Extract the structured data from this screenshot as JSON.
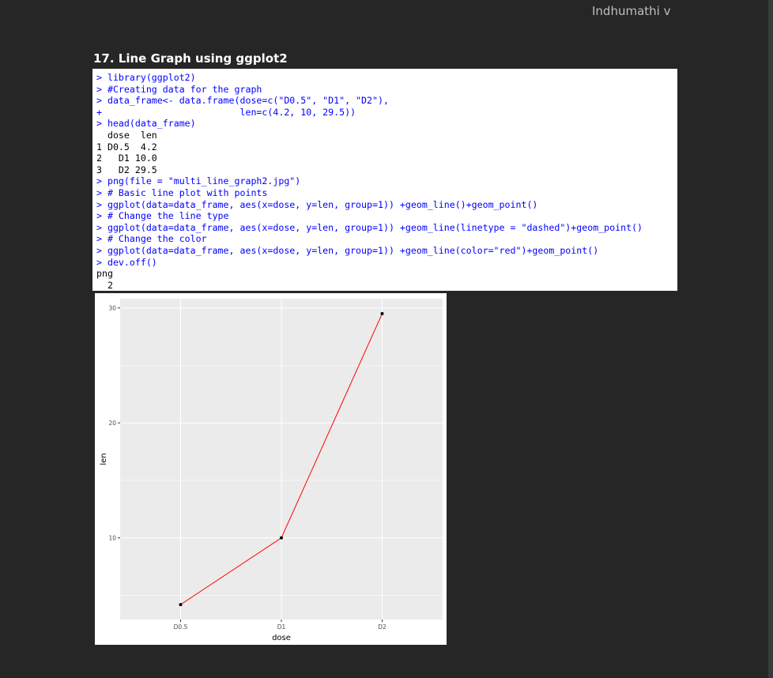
{
  "author": "Indhumathi v",
  "heading": "17. Line Graph using ggplot2",
  "console_lines": [
    {
      "text": "> library(ggplot2)",
      "kind": "in"
    },
    {
      "text": "> #Creating data for the graph",
      "kind": "in"
    },
    {
      "text": "> data_frame<- data.frame(dose=c(\"D0.5\", \"D1\", \"D2\"),",
      "kind": "in"
    },
    {
      "text": "+                         len=c(4.2, 10, 29.5))",
      "kind": "in"
    },
    {
      "text": "> head(data_frame)",
      "kind": "in"
    },
    {
      "text": "  dose  len",
      "kind": "out"
    },
    {
      "text": "1 D0.5  4.2",
      "kind": "out"
    },
    {
      "text": "2   D1 10.0",
      "kind": "out"
    },
    {
      "text": "3   D2 29.5",
      "kind": "out"
    },
    {
      "text": "> png(file = \"multi_line_graph2.jpg\")",
      "kind": "in"
    },
    {
      "text": "> # Basic line plot with points",
      "kind": "in"
    },
    {
      "text": "> ggplot(data=data_frame, aes(x=dose, y=len, group=1)) +geom_line()+geom_point()",
      "kind": "in"
    },
    {
      "text": "> # Change the line type",
      "kind": "in"
    },
    {
      "text": "> ggplot(data=data_frame, aes(x=dose, y=len, group=1)) +geom_line(linetype = \"dashed\")+geom_point()",
      "kind": "in"
    },
    {
      "text": "> # Change the color",
      "kind": "in"
    },
    {
      "text": "> ggplot(data=data_frame, aes(x=dose, y=len, group=1)) +geom_line(color=\"red\")+geom_point()",
      "kind": "in"
    },
    {
      "text": "> dev.off()",
      "kind": "in"
    },
    {
      "text": "png",
      "kind": "out"
    },
    {
      "text": "  2",
      "kind": "out"
    }
  ],
  "chart_data": {
    "type": "line",
    "categories": [
      "D0.5",
      "D1",
      "D2"
    ],
    "values": [
      4.2,
      10,
      29.5
    ],
    "xlabel": "dose",
    "ylabel": "len",
    "yticks": [
      10,
      20,
      30
    ],
    "ylim": [
      2.9,
      30.8
    ],
    "grid": true,
    "line_color": "#ff0000",
    "point_color": "#000000",
    "panel_color": "#ebebeb",
    "grid_color": "#ffffff"
  }
}
